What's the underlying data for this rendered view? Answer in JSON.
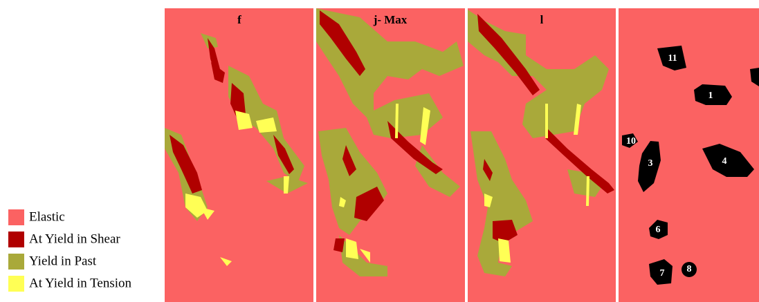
{
  "panels": [
    {
      "title": "f"
    },
    {
      "title": "j- Max"
    },
    {
      "title": "l"
    }
  ],
  "zones": [
    "11",
    "1",
    "10",
    "3",
    "4",
    "6",
    "7",
    "8"
  ],
  "legend": {
    "items": [
      {
        "label": "Elastic",
        "color": "#fb6262"
      },
      {
        "label": "At Yield in Shear",
        "color": "#b00000"
      },
      {
        "label": "Yield in Past",
        "color": "#a9a93a"
      },
      {
        "label": "At Yield in Tension",
        "color": "#ffff55"
      }
    ]
  }
}
